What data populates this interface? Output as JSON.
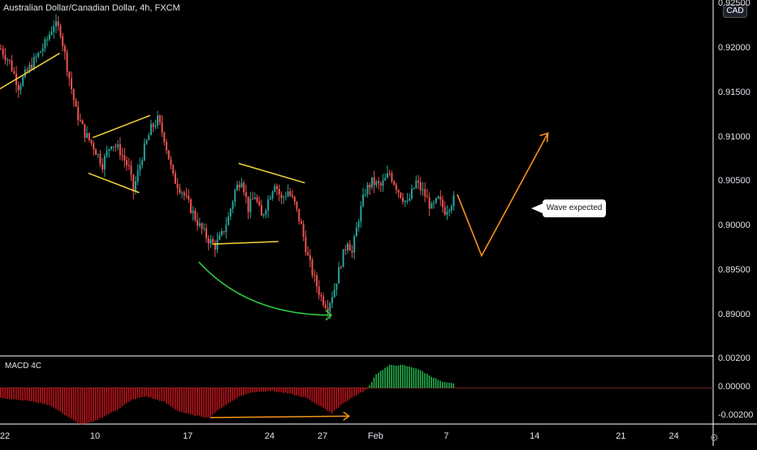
{
  "header": {
    "title": "Australian Dollar/Canadian Dollar, 4h, FXCM"
  },
  "currency_badge": "CAD",
  "annotation": {
    "text": "Wave expected"
  },
  "indicator": {
    "name": "MACD 4C"
  },
  "colors": {
    "up": "#26a69a",
    "down": "#ef5350",
    "macd_up": "#22b14c",
    "macd_down": "#c0141c",
    "pattern": "#f5d33b",
    "arc": "#2ecc40",
    "wave": "#f7931a",
    "axis": "#ffffff"
  },
  "chart_data": [
    {
      "type": "candlestick",
      "title": "Australian Dollar/Canadian Dollar, 4h, FXCM",
      "y_ticks": [
        "0.92500",
        "0.92000",
        "0.91500",
        "0.91000",
        "0.90500",
        "0.90000",
        "0.89500",
        "0.89000"
      ],
      "x_ticks": [
        "22",
        "10",
        "17",
        "24",
        "27",
        "Feb",
        "7",
        "14",
        "21",
        "24"
      ],
      "ylim": [
        0.8855,
        0.9255
      ],
      "close_path": [
        [
          0,
          0.92
        ],
        [
          4,
          0.9185
        ],
        [
          8,
          0.9158
        ],
        [
          12,
          0.9175
        ],
        [
          16,
          0.919
        ],
        [
          20,
          0.9205
        ],
        [
          24,
          0.9228
        ],
        [
          27,
          0.922
        ],
        [
          30,
          0.918
        ],
        [
          34,
          0.913
        ],
        [
          38,
          0.9105
        ],
        [
          42,
          0.909
        ],
        [
          46,
          0.907
        ],
        [
          50,
          0.9095
        ],
        [
          54,
          0.9085
        ],
        [
          58,
          0.9065
        ],
        [
          60,
          0.904
        ],
        [
          64,
          0.908
        ],
        [
          68,
          0.911
        ],
        [
          71,
          0.912
        ],
        [
          74,
          0.91
        ],
        [
          78,
          0.9055
        ],
        [
          82,
          0.904
        ],
        [
          86,
          0.902
        ],
        [
          90,
          0.9
        ],
        [
          94,
          0.8985
        ],
        [
          97,
          0.8978
        ],
        [
          100,
          0.899
        ],
        [
          103,
          0.901
        ],
        [
          106,
          0.904
        ],
        [
          109,
          0.9055
        ],
        [
          112,
          0.902
        ],
        [
          115,
          0.9035
        ],
        [
          118,
          0.901
        ],
        [
          121,
          0.903
        ],
        [
          124,
          0.905
        ],
        [
          127,
          0.903
        ],
        [
          130,
          0.904
        ],
        [
          133,
          0.9025
        ],
        [
          136,
          0.9
        ],
        [
          139,
          0.8965
        ],
        [
          142,
          0.894
        ],
        [
          145,
          0.892
        ],
        [
          148,
          0.891
        ],
        [
          151,
          0.893
        ],
        [
          154,
          0.896
        ],
        [
          157,
          0.8985
        ],
        [
          159,
          0.897
        ],
        [
          162,
          0.901
        ],
        [
          165,
          0.904
        ],
        [
          168,
          0.905
        ],
        [
          172,
          0.9045
        ],
        [
          176,
          0.906
        ],
        [
          180,
          0.904
        ],
        [
          184,
          0.9025
        ],
        [
          188,
          0.905
        ],
        [
          192,
          0.9035
        ],
        [
          195,
          0.902
        ],
        [
          198,
          0.903
        ],
        [
          201,
          0.9018
        ],
        [
          205,
          0.903
        ]
      ],
      "patterns": {
        "rising_wedge": [
          [
            0,
            0.9155
          ],
          [
            27,
            0.9195
          ]
        ],
        "triangle_top": [
          [
            42,
            0.91
          ],
          [
            68,
            0.9125
          ]
        ],
        "triangle_bottom": [
          [
            40,
            0.906
          ],
          [
            63,
            0.9038
          ]
        ],
        "range_top": [
          [
            108,
            0.9071
          ],
          [
            138,
            0.9049
          ]
        ],
        "range_bottom": [
          [
            96,
            0.898
          ],
          [
            126,
            0.8983
          ]
        ]
      },
      "forecast_wave": [
        [
          207,
          0.9036
        ],
        [
          218,
          0.8967
        ],
        [
          248,
          0.9105
        ]
      ],
      "arc": {
        "start": [
          90,
          0.896
        ],
        "control": [
          112,
          0.89
        ],
        "end": [
          150,
          0.89
        ]
      }
    },
    {
      "type": "histogram",
      "title": "MACD 4C",
      "y_ticks": [
        "0.00200",
        "0.00000",
        "-0.00200"
      ],
      "ylim": [
        -0.0025,
        0.0022
      ],
      "value_path": [
        [
          0,
          -0.0007
        ],
        [
          12,
          -0.0009
        ],
        [
          22,
          -0.0012
        ],
        [
          30,
          -0.002
        ],
        [
          36,
          -0.0026
        ],
        [
          42,
          -0.0024
        ],
        [
          52,
          -0.0016
        ],
        [
          60,
          -0.0008
        ],
        [
          66,
          -0.0006
        ],
        [
          74,
          -0.001
        ],
        [
          80,
          -0.0016
        ],
        [
          86,
          -0.0019
        ],
        [
          94,
          -0.0021
        ],
        [
          100,
          -0.0014
        ],
        [
          108,
          -0.0006
        ],
        [
          114,
          -0.0003
        ],
        [
          122,
          -0.0002
        ],
        [
          130,
          -0.0004
        ],
        [
          138,
          -0.0007
        ],
        [
          146,
          -0.0014
        ],
        [
          150,
          -0.0018
        ],
        [
          154,
          -0.0012
        ],
        [
          160,
          -0.0006
        ],
        [
          166,
          -0.0001
        ],
        [
          170,
          0.001
        ],
        [
          176,
          0.0016
        ],
        [
          182,
          0.0016
        ],
        [
          188,
          0.0014
        ],
        [
          194,
          0.0009
        ],
        [
          200,
          0.0004
        ],
        [
          205,
          0.0003
        ]
      ],
      "divergence_arrow": [
        [
          95,
          -0.0021
        ],
        [
          158,
          -0.002
        ]
      ]
    }
  ]
}
